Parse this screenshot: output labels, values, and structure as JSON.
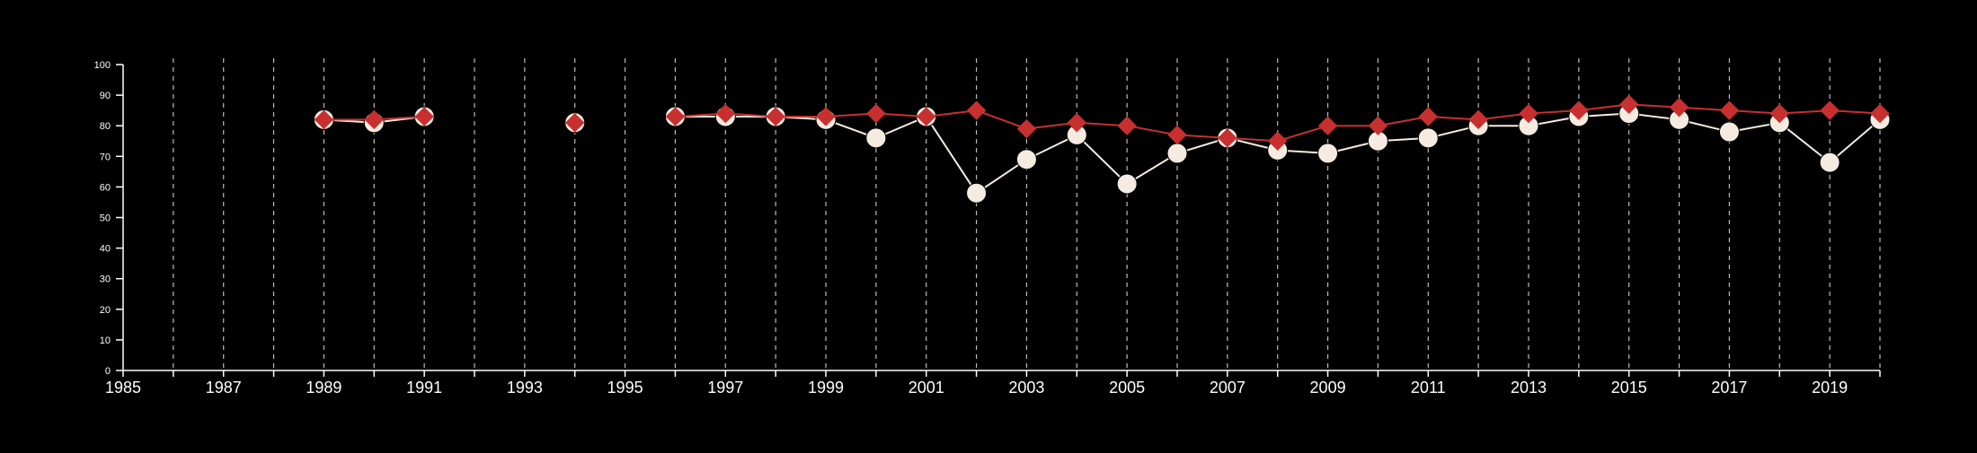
{
  "chart_data": {
    "type": "line",
    "title": "",
    "xlabel": "",
    "ylabel": "",
    "xlim": [
      1985,
      2020
    ],
    "ylim": [
      0,
      100
    ],
    "x_tick_labels": [
      "1985",
      "1987",
      "1989",
      "1991",
      "1993",
      "1995",
      "1997",
      "1999",
      "2001",
      "2003",
      "2005",
      "2007",
      "2009",
      "2011",
      "2013",
      "2015",
      "2017",
      "2019"
    ],
    "y_tick_labels": [
      "0",
      "10",
      "20",
      "30",
      "40",
      "50",
      "60",
      "70",
      "80",
      "90",
      "100"
    ],
    "vertical_gridlines": "dashed, yearly",
    "legend": "none",
    "series": [
      {
        "marker": "circle",
        "color": "#f5ebe0",
        "points": [
          {
            "x": 1989,
            "y": 82
          },
          {
            "x": 1990,
            "y": 81
          },
          {
            "x": 1991,
            "y": 83
          },
          {
            "x": 1994,
            "y": 81
          },
          {
            "x": 1996,
            "y": 83
          },
          {
            "x": 1997,
            "y": 83
          },
          {
            "x": 1998,
            "y": 83
          },
          {
            "x": 1999,
            "y": 82
          },
          {
            "x": 2000,
            "y": 76
          },
          {
            "x": 2001,
            "y": 83
          },
          {
            "x": 2002,
            "y": 58
          },
          {
            "x": 2003,
            "y": 69
          },
          {
            "x": 2004,
            "y": 77
          },
          {
            "x": 2005,
            "y": 61
          },
          {
            "x": 2006,
            "y": 71
          },
          {
            "x": 2007,
            "y": 76
          },
          {
            "x": 2008,
            "y": 72
          },
          {
            "x": 2009,
            "y": 71
          },
          {
            "x": 2010,
            "y": 75
          },
          {
            "x": 2011,
            "y": 76
          },
          {
            "x": 2012,
            "y": 80
          },
          {
            "x": 2013,
            "y": 80
          },
          {
            "x": 2014,
            "y": 83
          },
          {
            "x": 2015,
            "y": 84
          },
          {
            "x": 2016,
            "y": 82
          },
          {
            "x": 2017,
            "y": 78
          },
          {
            "x": 2018,
            "y": 81
          },
          {
            "x": 2019,
            "y": 68
          },
          {
            "x": 2020,
            "y": 82
          }
        ]
      },
      {
        "marker": "diamond",
        "color": "#c8302f",
        "points": [
          {
            "x": 1989,
            "y": 82
          },
          {
            "x": 1990,
            "y": 82
          },
          {
            "x": 1991,
            "y": 83
          },
          {
            "x": 1994,
            "y": 81
          },
          {
            "x": 1996,
            "y": 83
          },
          {
            "x": 1997,
            "y": 84
          },
          {
            "x": 1998,
            "y": 83
          },
          {
            "x": 1999,
            "y": 83
          },
          {
            "x": 2000,
            "y": 84
          },
          {
            "x": 2001,
            "y": 83
          },
          {
            "x": 2002,
            "y": 85
          },
          {
            "x": 2003,
            "y": 79
          },
          {
            "x": 2004,
            "y": 81
          },
          {
            "x": 2005,
            "y": 80
          },
          {
            "x": 2006,
            "y": 77
          },
          {
            "x": 2007,
            "y": 76
          },
          {
            "x": 2008,
            "y": 75
          },
          {
            "x": 2009,
            "y": 80
          },
          {
            "x": 2010,
            "y": 80
          },
          {
            "x": 2011,
            "y": 83
          },
          {
            "x": 2012,
            "y": 82
          },
          {
            "x": 2013,
            "y": 84
          },
          {
            "x": 2014,
            "y": 85
          },
          {
            "x": 2015,
            "y": 87
          },
          {
            "x": 2016,
            "y": 86
          },
          {
            "x": 2017,
            "y": 85
          },
          {
            "x": 2018,
            "y": 84
          },
          {
            "x": 2019,
            "y": 85
          },
          {
            "x": 2020,
            "y": 84
          }
        ]
      }
    ]
  }
}
